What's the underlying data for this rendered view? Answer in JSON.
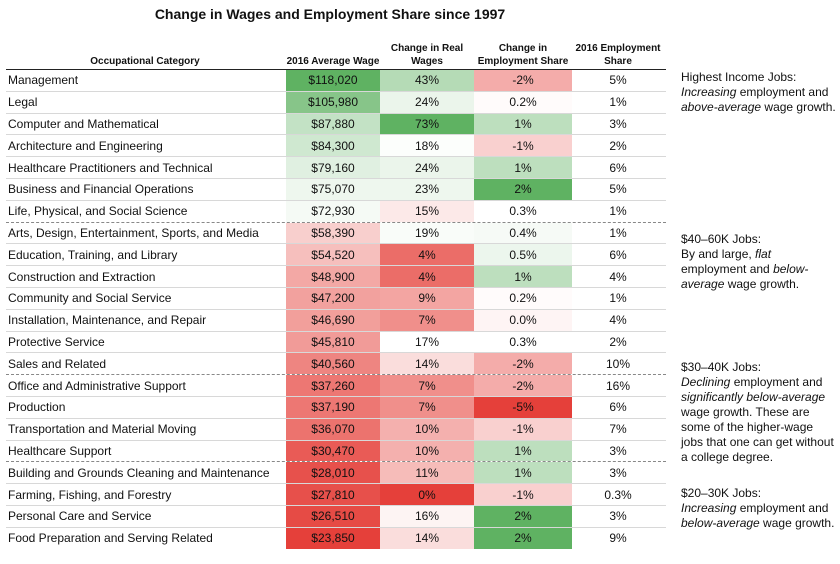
{
  "chart_data": {
    "type": "table",
    "title": "Change in Wages and Employment Share since 1997",
    "columns": {
      "category": "Occupational Category",
      "wage": "2016 Average Wage",
      "real_wages": "Change in Real Wages",
      "emp_share_change": "Change in Employment Share",
      "emp_share": "2016 Employment Share"
    },
    "rows": [
      {
        "category": "Management",
        "wage": "$118,020",
        "wage_value": 118020,
        "real_wages": "43%",
        "real_wages_value": 43,
        "emp_change": "-2%",
        "emp_change_value": -2,
        "share": "5%",
        "group": "high"
      },
      {
        "category": "Legal",
        "wage": "$105,980",
        "wage_value": 105980,
        "real_wages": "24%",
        "real_wages_value": 24,
        "emp_change": "0.2%",
        "emp_change_value": 0.2,
        "share": "1%",
        "group": "high"
      },
      {
        "category": "Computer and Mathematical",
        "wage": "$87,880",
        "wage_value": 87880,
        "real_wages": "73%",
        "real_wages_value": 73,
        "emp_change": "1%",
        "emp_change_value": 1,
        "share": "3%",
        "group": "high"
      },
      {
        "category": "Architecture and Engineering",
        "wage": "$84,300",
        "wage_value": 84300,
        "real_wages": "18%",
        "real_wages_value": 18,
        "emp_change": "-1%",
        "emp_change_value": -1,
        "share": "2%",
        "group": "high"
      },
      {
        "category": "Healthcare Practitioners and Technical",
        "wage": "$79,160",
        "wage_value": 79160,
        "real_wages": "24%",
        "real_wages_value": 24,
        "emp_change": "1%",
        "emp_change_value": 1,
        "share": "6%",
        "group": "high"
      },
      {
        "category": "Business and Financial Operations",
        "wage": "$75,070",
        "wage_value": 75070,
        "real_wages": "23%",
        "real_wages_value": 23,
        "emp_change": "2%",
        "emp_change_value": 2,
        "share": "5%",
        "group": "high"
      },
      {
        "category": "Life, Physical, and Social Science",
        "wage": "$72,930",
        "wage_value": 72930,
        "real_wages": "15%",
        "real_wages_value": 15,
        "emp_change": "0.3%",
        "emp_change_value": 0.3,
        "share": "1%",
        "group": "high"
      },
      {
        "category": "Arts, Design, Entertainment, Sports, and Media",
        "wage": "$58,390",
        "wage_value": 58390,
        "real_wages": "19%",
        "real_wages_value": 19,
        "emp_change": "0.4%",
        "emp_change_value": 0.4,
        "share": "1%",
        "group": "mid"
      },
      {
        "category": "Education, Training, and Library",
        "wage": "$54,520",
        "wage_value": 54520,
        "real_wages": "4%",
        "real_wages_value": 4,
        "emp_change": "0.5%",
        "emp_change_value": 0.5,
        "share": "6%",
        "group": "mid"
      },
      {
        "category": "Construction and Extraction",
        "wage": "$48,900",
        "wage_value": 48900,
        "real_wages": "4%",
        "real_wages_value": 4,
        "emp_change": "1%",
        "emp_change_value": 1,
        "share": "4%",
        "group": "mid"
      },
      {
        "category": "Community and Social Service",
        "wage": "$47,200",
        "wage_value": 47200,
        "real_wages": "9%",
        "real_wages_value": 9,
        "emp_change": "0.2%",
        "emp_change_value": 0.2,
        "share": "1%",
        "group": "mid"
      },
      {
        "category": "Installation, Maintenance, and Repair",
        "wage": "$46,690",
        "wage_value": 46690,
        "real_wages": "7%",
        "real_wages_value": 7,
        "emp_change": "0.0%",
        "emp_change_value": 0.0,
        "share": "4%",
        "group": "mid"
      },
      {
        "category": "Protective Service",
        "wage": "$45,810",
        "wage_value": 45810,
        "real_wages": "17%",
        "real_wages_value": 17,
        "emp_change": "0.3%",
        "emp_change_value": 0.3,
        "share": "2%",
        "group": "mid"
      },
      {
        "category": "Sales and Related",
        "wage": "$40,560",
        "wage_value": 40560,
        "real_wages": "14%",
        "real_wages_value": 14,
        "emp_change": "-2%",
        "emp_change_value": -2,
        "share": "10%",
        "group": "mid"
      },
      {
        "category": "Office and Administrative Support",
        "wage": "$37,260",
        "wage_value": 37260,
        "real_wages": "7%",
        "real_wages_value": 7,
        "emp_change": "-2%",
        "emp_change_value": -2,
        "share": "16%",
        "group": "low"
      },
      {
        "category": "Production",
        "wage": "$37,190",
        "wage_value": 37190,
        "real_wages": "7%",
        "real_wages_value": 7,
        "emp_change": "-5%",
        "emp_change_value": -5,
        "share": "6%",
        "group": "low"
      },
      {
        "category": "Transportation and Material Moving",
        "wage": "$36,070",
        "wage_value": 36070,
        "real_wages": "10%",
        "real_wages_value": 10,
        "emp_change": "-1%",
        "emp_change_value": -1,
        "share": "7%",
        "group": "low"
      },
      {
        "category": "Healthcare Support",
        "wage": "$30,470",
        "wage_value": 30470,
        "real_wages": "10%",
        "real_wages_value": 10,
        "emp_change": "1%",
        "emp_change_value": 1,
        "share": "3%",
        "group": "low"
      },
      {
        "category": "Building and Grounds Cleaning and Maintenance",
        "wage": "$28,010",
        "wage_value": 28010,
        "real_wages": "11%",
        "real_wages_value": 11,
        "emp_change": "1%",
        "emp_change_value": 1,
        "share": "3%",
        "group": "lowest"
      },
      {
        "category": "Farming, Fishing, and Forestry",
        "wage": "$27,810",
        "wage_value": 27810,
        "real_wages": "0%",
        "real_wages_value": 0,
        "emp_change": "-1%",
        "emp_change_value": -1,
        "share": "0.3%",
        "group": "lowest"
      },
      {
        "category": "Personal Care and Service",
        "wage": "$26,510",
        "wage_value": 26510,
        "real_wages": "16%",
        "real_wages_value": 16,
        "emp_change": "2%",
        "emp_change_value": 2,
        "share": "3%",
        "group": "lowest"
      },
      {
        "category": "Food Preparation and Serving Related",
        "wage": "$23,850",
        "wage_value": 23850,
        "real_wages": "14%",
        "real_wages_value": 14,
        "emp_change": "2%",
        "emp_change_value": 2,
        "share": "9%",
        "group": "lowest"
      }
    ],
    "annotations": [
      {
        "group": "high",
        "segments": [
          [
            "Highest Income Jobs:",
            ""
          ],
          [
            "Increasing",
            "i"
          ],
          [
            " employment and ",
            ""
          ],
          [
            "above-average",
            "i"
          ],
          [
            " wage growth.",
            ""
          ]
        ]
      },
      {
        "group": "mid",
        "segments": [
          [
            "$40–60K Jobs:",
            ""
          ],
          [
            "By and large, ",
            ""
          ],
          [
            "flat",
            "i"
          ],
          [
            " employment and ",
            ""
          ],
          [
            "below-average",
            "i"
          ],
          [
            " wage growth.",
            ""
          ]
        ]
      },
      {
        "group": "low",
        "segments": [
          [
            "$30–40K Jobs:",
            ""
          ],
          [
            "Declining",
            "i"
          ],
          [
            " employment and ",
            ""
          ],
          [
            "significantly below-average",
            "i"
          ],
          [
            " wage growth. These are some of the higher-wage jobs that one can get without a college degree.",
            ""
          ]
        ]
      },
      {
        "group": "lowest",
        "segments": [
          [
            "$20–30K Jobs:",
            ""
          ],
          [
            "Increasing",
            "i"
          ],
          [
            " employment and ",
            ""
          ],
          [
            "below-average",
            "i"
          ],
          [
            " wage growth.",
            ""
          ]
        ]
      }
    ],
    "colors": {
      "green": "#5fb262",
      "red": "#e5403a",
      "neutral": "#ffffff"
    }
  }
}
